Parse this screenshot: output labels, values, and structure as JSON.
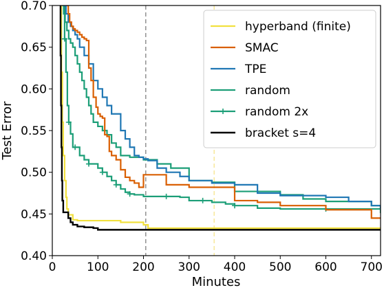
{
  "chart_data": {
    "type": "line",
    "title": "",
    "xlabel": "Minutes",
    "ylabel": "Test Error",
    "xlim": [
      0,
      720
    ],
    "ylim": [
      0.4,
      0.7
    ],
    "xticks": [
      0,
      100,
      200,
      300,
      400,
      500,
      600,
      700
    ],
    "xtick_labels": [
      "0",
      "100",
      "200",
      "300",
      "400",
      "500",
      "600",
      "700"
    ],
    "yticks": [
      0.4,
      0.45,
      0.5,
      0.55,
      0.6,
      0.65,
      0.7
    ],
    "ytick_labels": [
      "0.40",
      "0.45",
      "0.50",
      "0.55",
      "0.60",
      "0.65",
      "0.70"
    ],
    "grid": false,
    "legend_position": "top-right",
    "vlines": [
      {
        "x": 205,
        "color": "#7f7f7f",
        "style": "dashed"
      },
      {
        "x": 355,
        "color": "#f6e58a",
        "style": "dashed"
      }
    ],
    "series": [
      {
        "name": "hyperband (finite)",
        "color": "#f1e03e",
        "marker": "none",
        "x": [
          18,
          20,
          22,
          24,
          27,
          30,
          32,
          35,
          45,
          55,
          100,
          150,
          200,
          210,
          250,
          300,
          400,
          500,
          600,
          720
        ],
        "y": [
          0.7,
          0.62,
          0.56,
          0.52,
          0.49,
          0.47,
          0.456,
          0.449,
          0.443,
          0.442,
          0.442,
          0.44,
          0.437,
          0.433,
          0.433,
          0.433,
          0.433,
          0.433,
          0.433,
          0.433
        ]
      },
      {
        "name": "SMAC",
        "color": "#d95f02",
        "marker": "none",
        "x": [
          32,
          35,
          38,
          42,
          46,
          50,
          55,
          60,
          65,
          70,
          75,
          80,
          85,
          90,
          96,
          100,
          105,
          110,
          115,
          120,
          125,
          130,
          140,
          150,
          160,
          170,
          180,
          190,
          200,
          250,
          300,
          350,
          400,
          450,
          500,
          600,
          700,
          720
        ],
        "y": [
          0.7,
          0.69,
          0.68,
          0.675,
          0.672,
          0.67,
          0.668,
          0.665,
          0.662,
          0.66,
          0.658,
          0.625,
          0.61,
          0.59,
          0.578,
          0.57,
          0.567,
          0.565,
          0.545,
          0.543,
          0.525,
          0.52,
          0.515,
          0.503,
          0.494,
          0.49,
          0.487,
          0.482,
          0.497,
          0.485,
          0.482,
          0.482,
          0.466,
          0.464,
          0.46,
          0.455,
          0.445,
          0.445
        ]
      },
      {
        "name": "TPE",
        "color": "#1f77b4",
        "marker": "none",
        "x": [
          25,
          30,
          35,
          40,
          45,
          50,
          55,
          60,
          70,
          80,
          90,
          100,
          110,
          120,
          130,
          150,
          160,
          170,
          180,
          190,
          200,
          210,
          230,
          250,
          280,
          300,
          350,
          400,
          450,
          500,
          600,
          650,
          700,
          720
        ],
        "y": [
          0.7,
          0.69,
          0.68,
          0.675,
          0.67,
          0.665,
          0.66,
          0.65,
          0.64,
          0.63,
          0.61,
          0.6,
          0.59,
          0.58,
          0.57,
          0.55,
          0.54,
          0.53,
          0.52,
          0.518,
          0.516,
          0.514,
          0.505,
          0.5,
          0.495,
          0.49,
          0.487,
          0.485,
          0.475,
          0.472,
          0.47,
          0.465,
          0.46,
          0.456
        ]
      },
      {
        "name": "random",
        "color": "#1b9e77",
        "marker": "none",
        "x": [
          22,
          25,
          28,
          32,
          36,
          40,
          45,
          50,
          55,
          60,
          65,
          70,
          75,
          80,
          85,
          90,
          100,
          110,
          120,
          130,
          140,
          150,
          170,
          200,
          230,
          260,
          300,
          350,
          400,
          500,
          550,
          600,
          650,
          700,
          720
        ],
        "y": [
          0.7,
          0.69,
          0.68,
          0.67,
          0.66,
          0.655,
          0.65,
          0.64,
          0.63,
          0.62,
          0.61,
          0.6,
          0.59,
          0.58,
          0.57,
          0.56,
          0.555,
          0.55,
          0.545,
          0.535,
          0.53,
          0.52,
          0.518,
          0.515,
          0.51,
          0.505,
          0.49,
          0.488,
          0.477,
          0.473,
          0.468,
          0.465,
          0.465,
          0.46,
          0.456
        ]
      },
      {
        "name": "random 2x",
        "color": "#1b9e77",
        "marker": "+",
        "x": [
          24,
          27,
          30,
          33,
          36,
          40,
          45,
          50,
          60,
          70,
          80,
          90,
          100,
          110,
          120,
          130,
          140,
          150,
          160,
          170,
          180,
          200,
          250,
          280,
          300,
          330,
          350,
          380,
          400,
          450,
          500,
          600,
          720
        ],
        "y": [
          0.7,
          0.66,
          0.62,
          0.58,
          0.56,
          0.546,
          0.53,
          0.53,
          0.52,
          0.515,
          0.51,
          0.51,
          0.505,
          0.5,
          0.495,
          0.49,
          0.485,
          0.48,
          0.476,
          0.474,
          0.473,
          0.471,
          0.471,
          0.47,
          0.466,
          0.466,
          0.464,
          0.462,
          0.46,
          0.457,
          0.456,
          0.456,
          0.451
        ]
      },
      {
        "name": "bracket s=4",
        "color": "#000000",
        "marker": "none",
        "x": [
          17,
          18,
          19,
          20,
          21,
          22,
          24,
          26,
          28,
          30,
          35,
          40,
          45,
          50,
          55,
          60,
          70,
          80,
          90,
          100,
          200,
          300,
          400,
          500,
          600,
          720
        ],
        "y": [
          0.7,
          0.64,
          0.58,
          0.53,
          0.49,
          0.466,
          0.452,
          0.452,
          0.452,
          0.452,
          0.445,
          0.44,
          0.437,
          0.437,
          0.435,
          0.435,
          0.434,
          0.434,
          0.433,
          0.431,
          0.431,
          0.431,
          0.431,
          0.431,
          0.431,
          0.431
        ]
      }
    ]
  }
}
